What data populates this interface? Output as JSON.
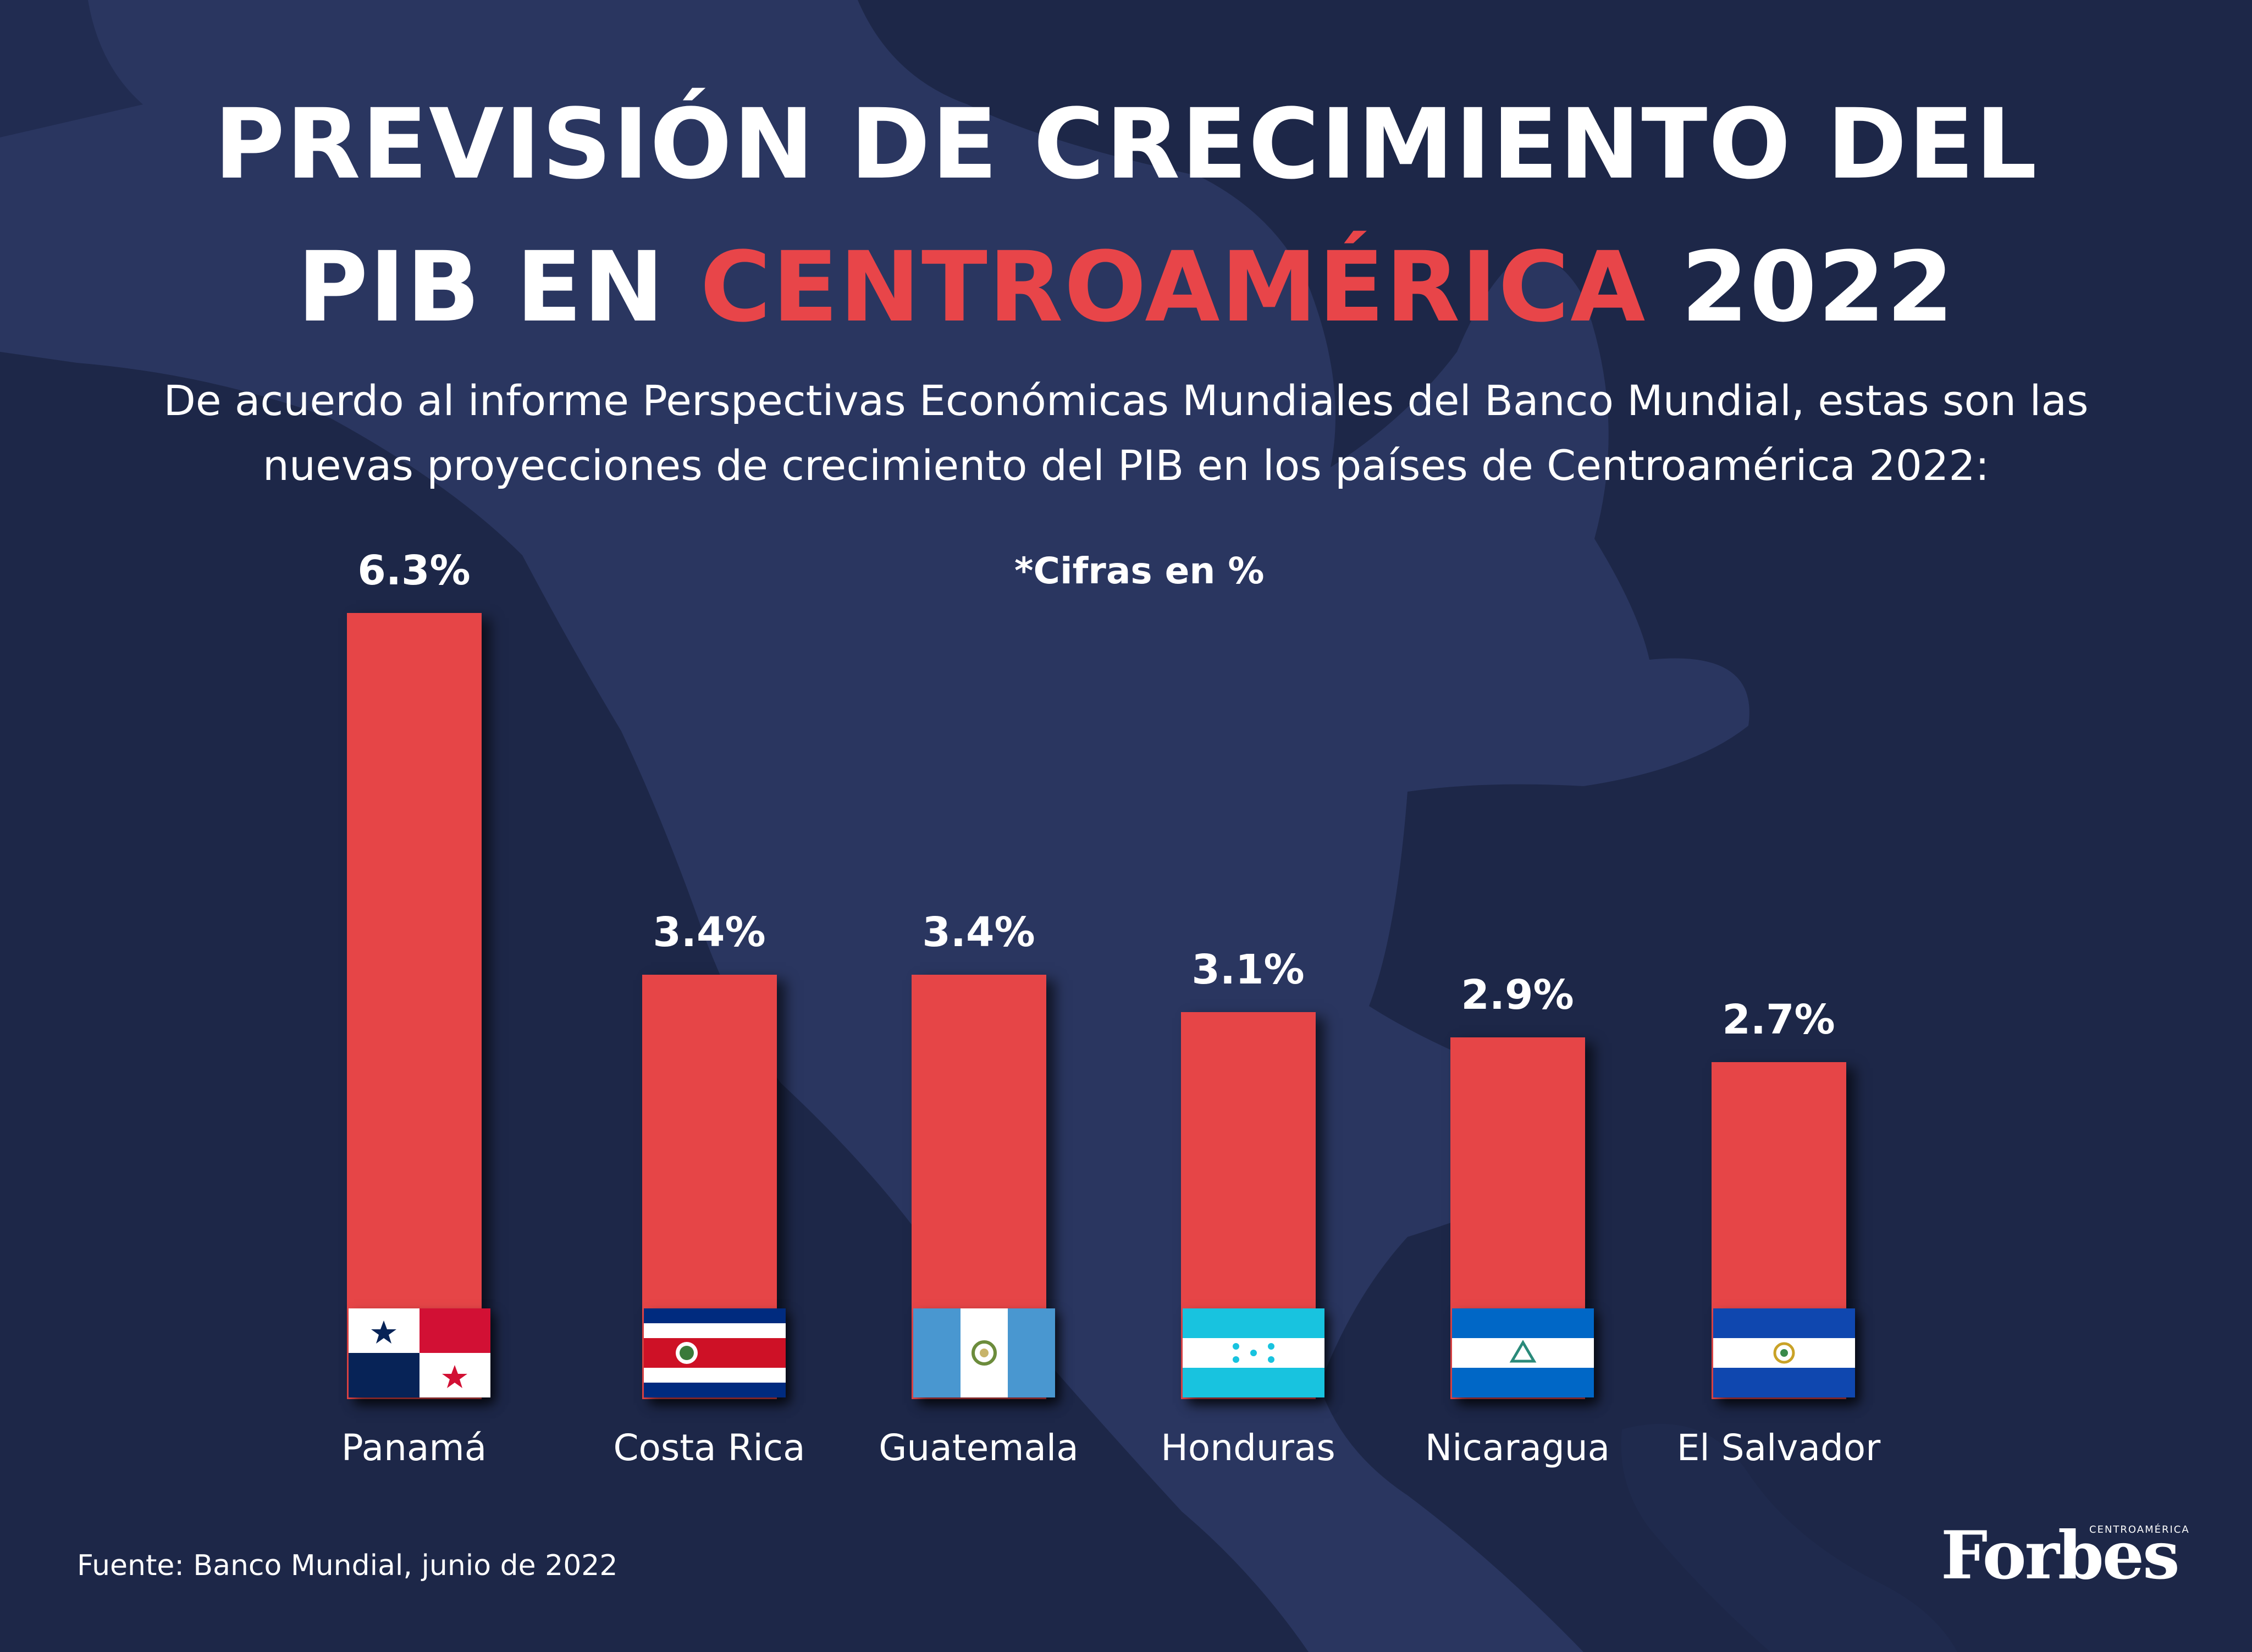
{
  "header": {
    "title_line1": "PREVISIÓN DE CRECIMIENTO DEL",
    "title_line2_prefix": "PIB EN",
    "title_line2_highlight": "CENTROAMÉRICA",
    "title_line2_suffix": "2022",
    "subtitle_line1": "De acuerdo al informe Perspectivas Económicas Mundiales del Banco Mundial, estas son las",
    "subtitle_line2": "nuevas proyecciones de crecimiento del PIB en los países de Centroamérica 2022:"
  },
  "note": "*Cifras en %",
  "footer": {
    "source": "Fuente: Banco Mundial, junio de 2022",
    "brand": "Forbes",
    "brand_sub": "CENTROAMÉRICA"
  },
  "colors": {
    "background": "#1d2748",
    "map": "#2a3660",
    "bar": "#e64547",
    "accent": "#e84549",
    "text": "#ffffff"
  },
  "chart_data": {
    "type": "bar",
    "title": "PREVISIÓN DE CRECIMIENTO DEL PIB EN CENTROAMÉRICA 2022",
    "categories": [
      "Panamá",
      "Costa Rica",
      "Guatemala",
      "Honduras",
      "Nicaragua",
      "El Salvador"
    ],
    "values": [
      6.3,
      3.4,
      3.4,
      3.1,
      2.9,
      2.7
    ],
    "value_labels": [
      "6.3%",
      "3.4%",
      "3.4%",
      "3.1%",
      "2.9%",
      "2.7%"
    ],
    "flag_icons": [
      "panama-flag-icon",
      "costa-rica-flag-icon",
      "guatemala-flag-icon",
      "honduras-flag-icon",
      "nicaragua-flag-icon",
      "el-salvador-flag-icon"
    ],
    "ylim": [
      0,
      6.3
    ],
    "grid": false,
    "legend": "none"
  }
}
